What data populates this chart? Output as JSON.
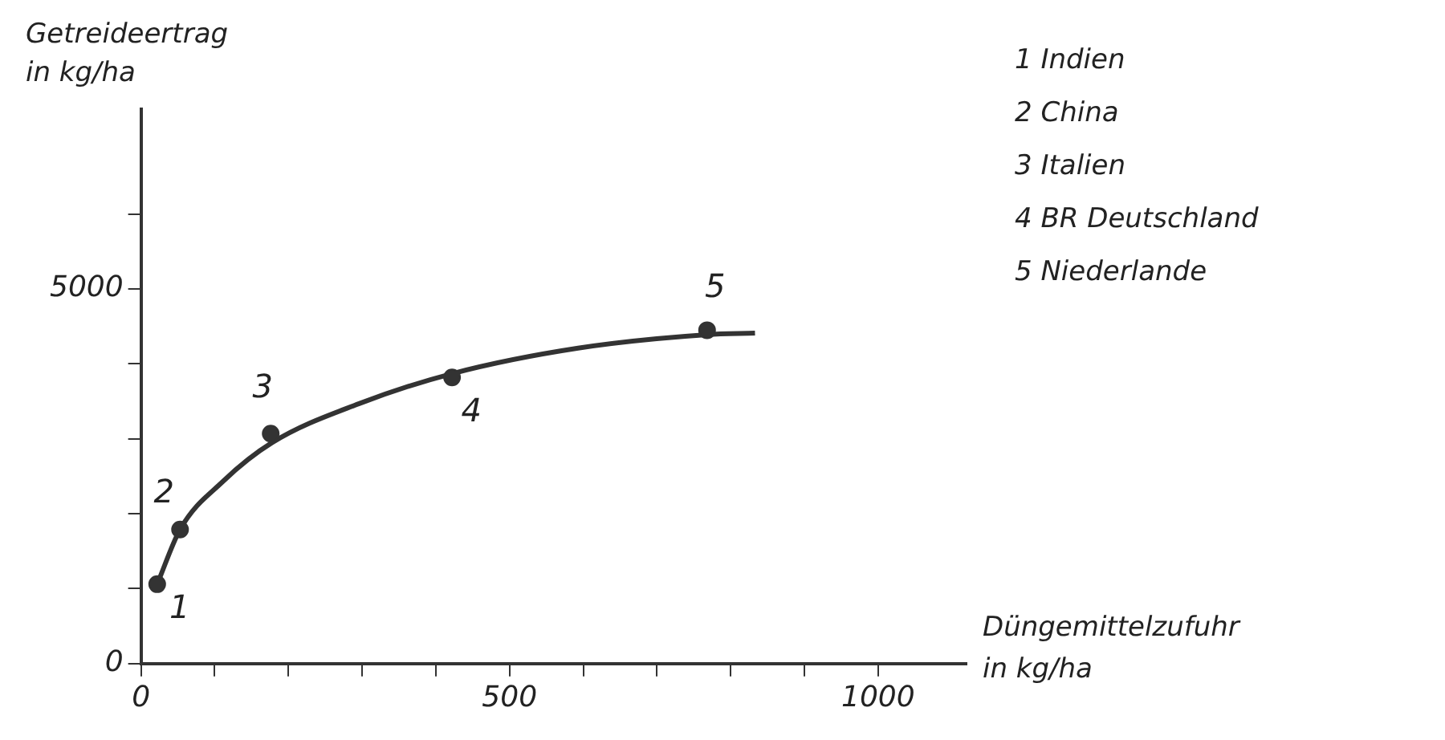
{
  "chart_data": {
    "type": "scatter",
    "xlabel": "Düngemittelzufuhr in kg/ha",
    "ylabel": "Getreideertrag in kg/ha",
    "x": [
      22,
      53,
      176,
      422,
      768
    ],
    "series": [
      {
        "color": "#333333",
        "marker": "circle",
        "values": [
          1060,
          1790,
          3070,
          3820,
          4450
        ]
      },
      {
        "type": "line",
        "color": "#333333",
        "marker": "none",
        "line_style": "solid",
        "x": [
          22,
          53,
          111,
          178,
          296,
          422,
          593,
          768,
          833
        ],
        "values": [
          1060,
          1790,
          2430,
          2950,
          3470,
          3870,
          4210,
          4390,
          4410
        ]
      }
    ],
    "xlim": [
      0,
      1120
    ],
    "ylim": [
      0,
      7400
    ],
    "xticks": [
      0,
      {
        "value": 100,
        "label": null
      },
      {
        "value": 200,
        "label": null
      },
      {
        "value": 300,
        "label": null
      },
      {
        "value": 400,
        "label": null
      },
      500,
      {
        "value": 600,
        "label": null
      },
      {
        "value": 700,
        "label": null
      },
      {
        "value": 800,
        "label": null
      },
      {
        "value": 900,
        "label": null
      },
      1000
    ],
    "yticks": [
      0,
      {
        "value": 1000,
        "label": null
      },
      {
        "value": 2000,
        "label": null
      },
      {
        "value": 3000,
        "label": null
      },
      {
        "value": 4000,
        "label": null
      },
      5000,
      {
        "value": 6000,
        "label": null
      }
    ],
    "grid": false,
    "legend": false,
    "annotations": [
      {
        "text": "1",
        "x": 22,
        "y": 1060
      },
      {
        "text": "2",
        "x": 53,
        "y": 1790
      },
      {
        "text": "3",
        "x": 176,
        "y": 3070
      },
      {
        "text": "4",
        "x": 422,
        "y": 3820
      },
      {
        "text": "5",
        "x": 768,
        "y": 4450
      },
      "1 Indien",
      "2 China",
      "3 Italien",
      "4 BR Deutschland",
      "5 Niederlande"
    ]
  }
}
